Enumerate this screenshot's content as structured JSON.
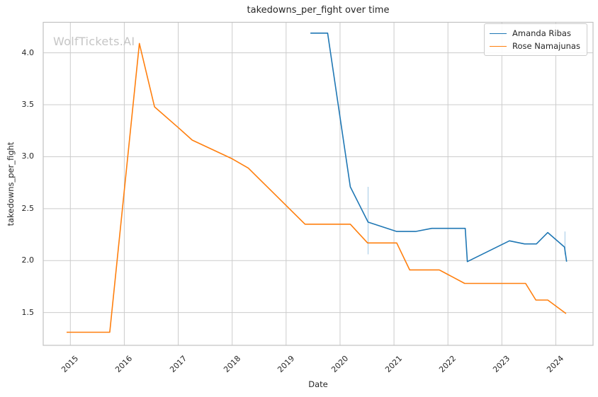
{
  "chart_data": {
    "type": "line",
    "title": "takedowns_per_fight over time",
    "xlabel": "Date",
    "ylabel": "takedowns_per_fight",
    "watermark": "WolfTickets.AI",
    "xlim": [
      2014.497,
      2024.69
    ],
    "ylim": [
      1.184,
      4.294
    ],
    "xticks": [
      2015,
      2016,
      2017,
      2018,
      2019,
      2020,
      2021,
      2022,
      2023,
      2024
    ],
    "yticks": [
      1.5,
      2.0,
      2.5,
      3.0,
      3.5,
      4.0
    ],
    "grid": true,
    "legend_position": "top-right",
    "series": [
      {
        "name": "Amanda Ribas",
        "color": "#1f77b4",
        "points": [
          [
            2019.45,
            4.19
          ],
          [
            2019.77,
            4.19
          ],
          [
            2020.19,
            2.71
          ],
          [
            2020.52,
            2.37
          ],
          [
            2021.05,
            2.28
          ],
          [
            2021.4,
            2.28
          ],
          [
            2021.7,
            2.31
          ],
          [
            2022.32,
            2.31
          ],
          [
            2022.36,
            1.99
          ],
          [
            2023.14,
            2.19
          ],
          [
            2023.42,
            2.16
          ],
          [
            2023.64,
            2.16
          ],
          [
            2023.85,
            2.27
          ],
          [
            2024.16,
            2.13
          ],
          [
            2024.2,
            1.99
          ]
        ]
      },
      {
        "name": "Rose Namajunas",
        "color": "#ff7f0e",
        "points": [
          [
            2014.93,
            1.31
          ],
          [
            2015.73,
            1.31
          ],
          [
            2016.28,
            4.09
          ],
          [
            2016.56,
            3.48
          ],
          [
            2017.0,
            3.28
          ],
          [
            2017.26,
            3.16
          ],
          [
            2018.0,
            2.98
          ],
          [
            2018.3,
            2.89
          ],
          [
            2019.35,
            2.35
          ],
          [
            2020.19,
            2.35
          ],
          [
            2020.51,
            2.17
          ],
          [
            2021.05,
            2.17
          ],
          [
            2021.29,
            1.91
          ],
          [
            2021.84,
            1.91
          ],
          [
            2022.31,
            1.78
          ],
          [
            2023.44,
            1.78
          ],
          [
            2023.63,
            1.62
          ],
          [
            2023.85,
            1.62
          ],
          [
            2024.19,
            1.49
          ]
        ]
      }
    ],
    "range_markers": [
      {
        "x": 2020.52,
        "y_min": 2.06,
        "y_max": 2.71,
        "color": "#b9d6ec"
      },
      {
        "x": 2024.17,
        "y_min": 2.06,
        "y_max": 2.28,
        "color": "#b9d6ec"
      }
    ],
    "colors": {
      "grid": "#cccccc",
      "spine": "#c2c2c2",
      "text": "#262626",
      "watermark": "#c6c6c6"
    }
  }
}
